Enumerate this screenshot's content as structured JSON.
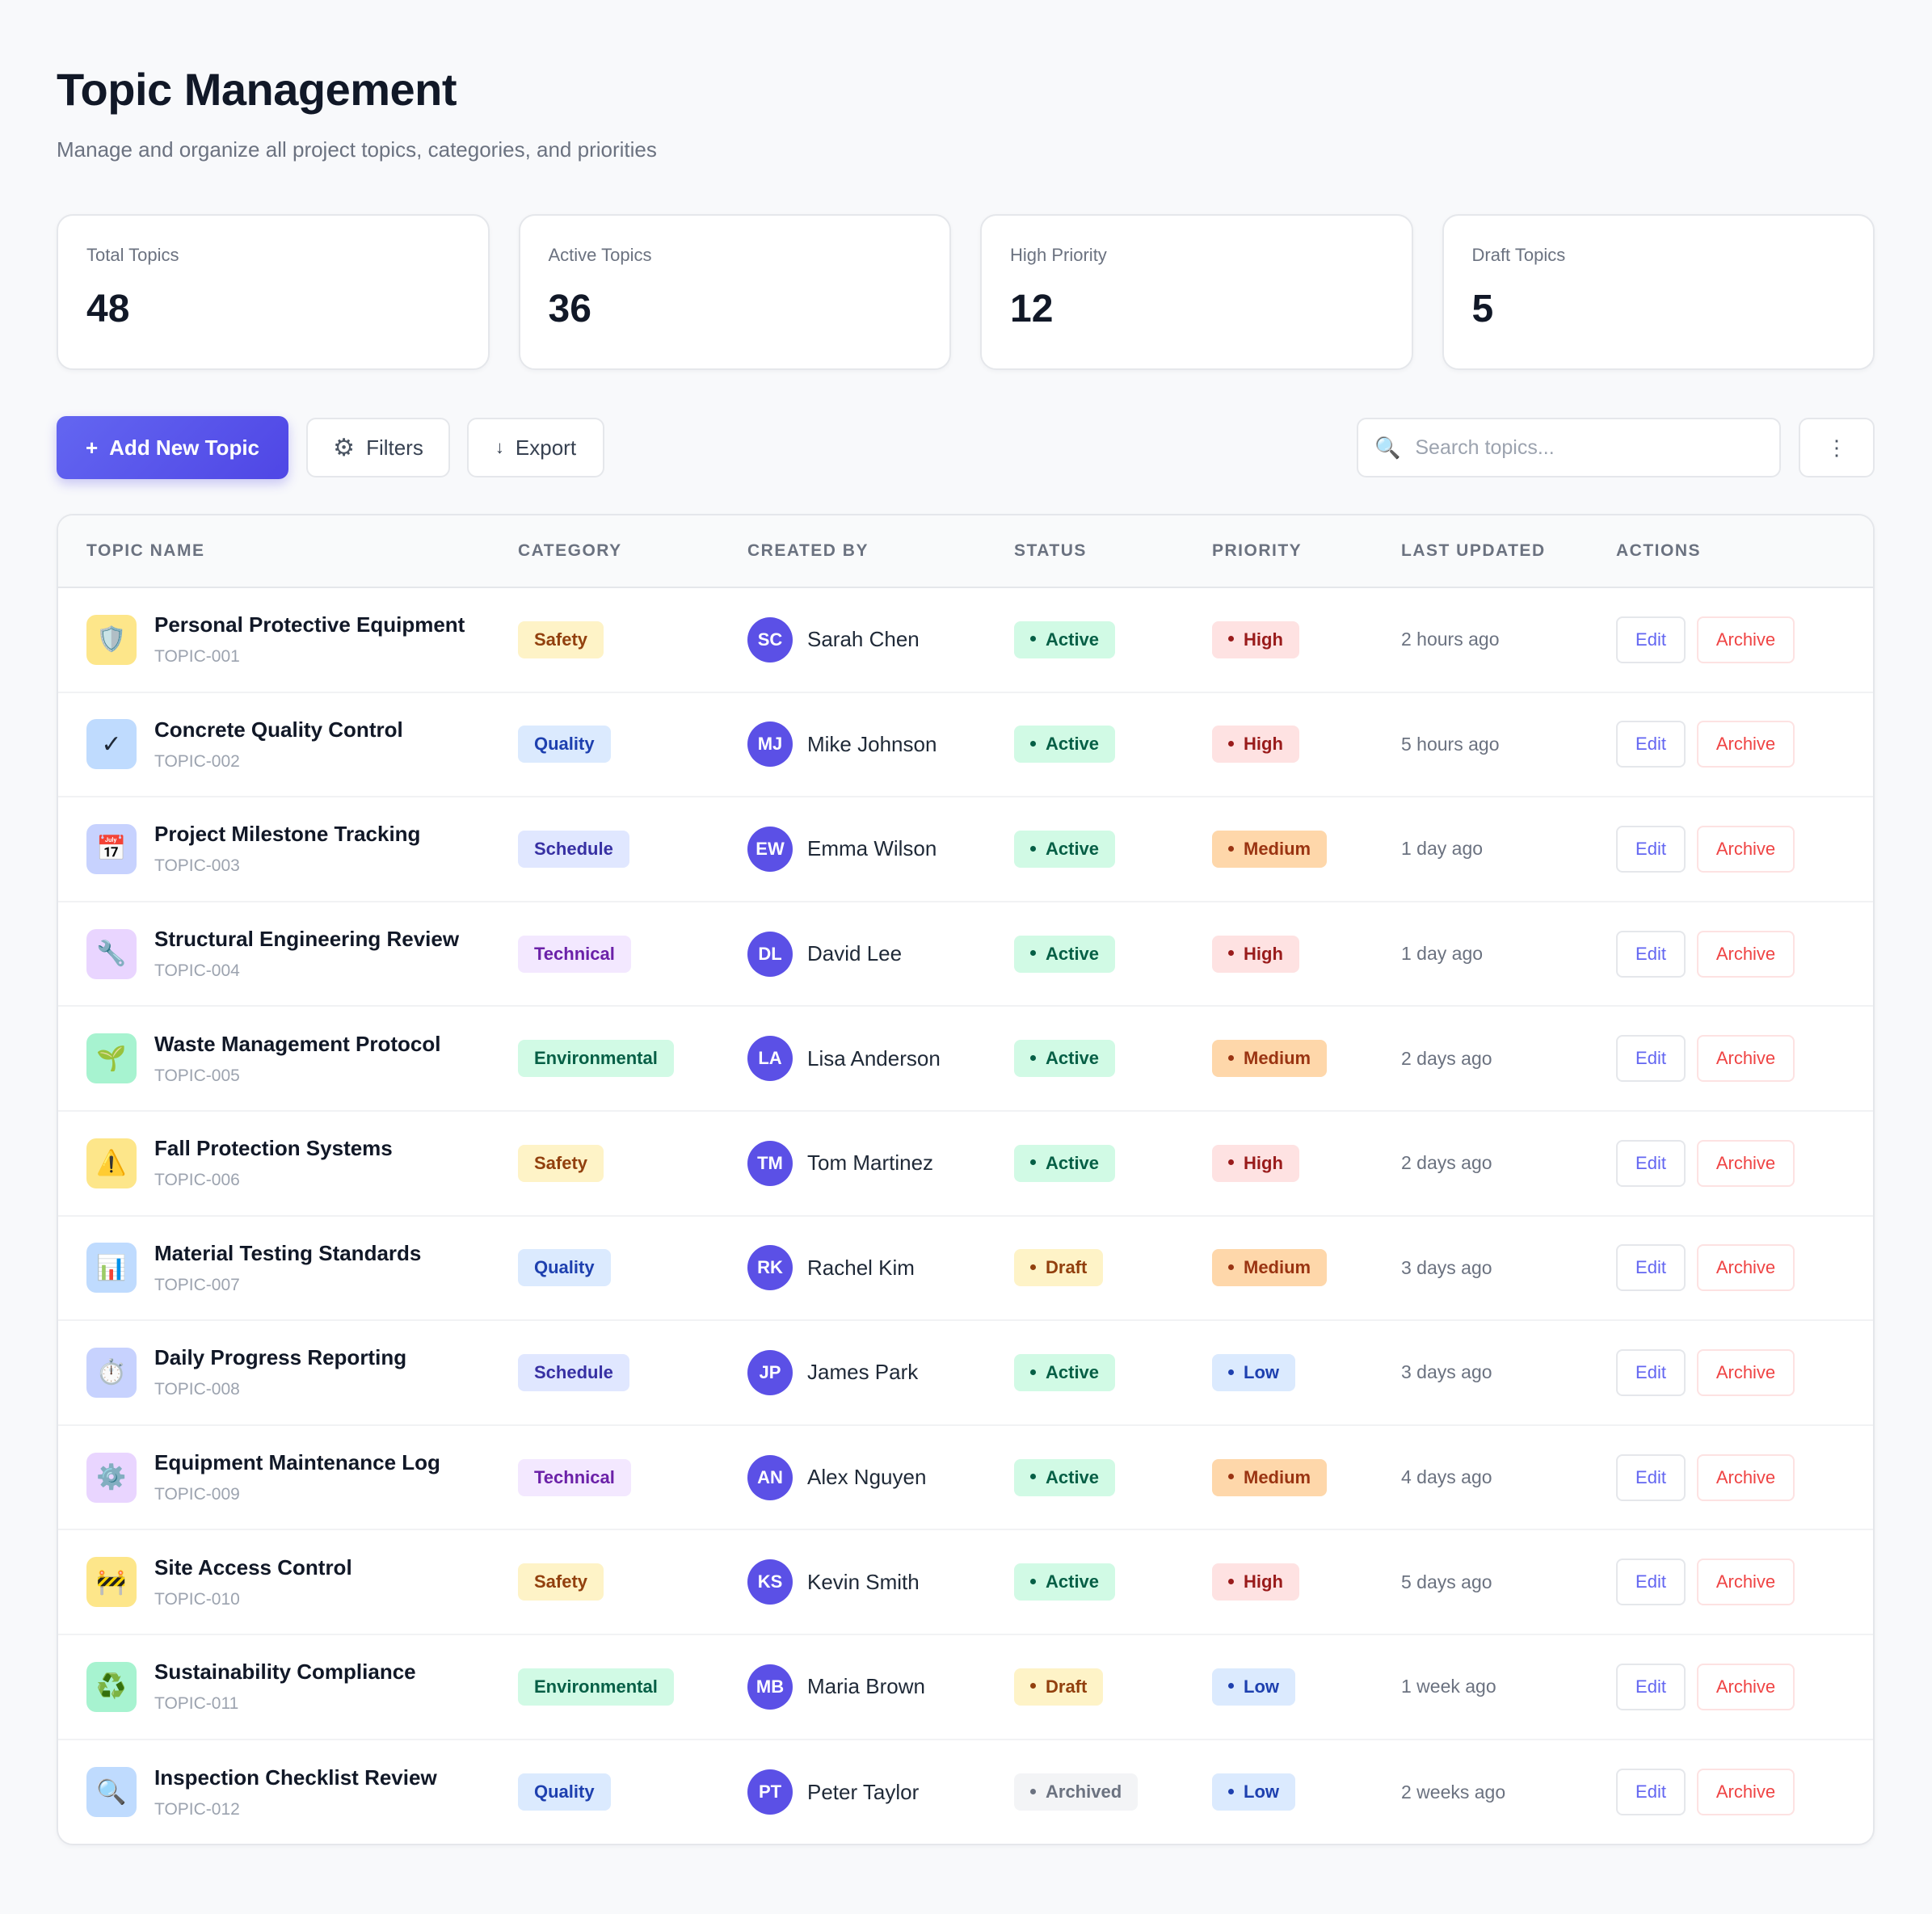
{
  "header": {
    "title": "Topic Management",
    "subtitle": "Manage and organize all project topics, categories, and priorities"
  },
  "stats": [
    {
      "label": "Total Topics",
      "value": "48"
    },
    {
      "label": "Active Topics",
      "value": "36"
    },
    {
      "label": "High Priority",
      "value": "12"
    },
    {
      "label": "Draft Topics",
      "value": "5"
    }
  ],
  "toolbar": {
    "add_label": "Add New Topic",
    "add_icon": "+",
    "filters_label": "Filters",
    "filters_icon": "⚙",
    "export_label": "Export",
    "export_icon": "↓",
    "search_placeholder": "Search topics...",
    "search_icon": "🔍",
    "more_icon": "⋮"
  },
  "table": {
    "columns": [
      "TOPIC NAME",
      "CATEGORY",
      "CREATED BY",
      "STATUS",
      "PRIORITY",
      "LAST UPDATED",
      "ACTIONS"
    ],
    "edit_label": "Edit",
    "archive_label": "Archive",
    "rows": [
      {
        "icon": "🛡️",
        "icon_name": "shield-icon",
        "name": "Personal Protective Equipment",
        "id": "TOPIC-001",
        "category": "Safety",
        "initials": "SC",
        "creator": "Sarah Chen",
        "status": "Active",
        "priority": "High",
        "updated": "2 hours ago"
      },
      {
        "icon": "✓",
        "icon_name": "check-icon",
        "name": "Concrete Quality Control",
        "id": "TOPIC-002",
        "category": "Quality",
        "initials": "MJ",
        "creator": "Mike Johnson",
        "status": "Active",
        "priority": "High",
        "updated": "5 hours ago"
      },
      {
        "icon": "📅",
        "icon_name": "calendar-icon",
        "name": "Project Milestone Tracking",
        "id": "TOPIC-003",
        "category": "Schedule",
        "initials": "EW",
        "creator": "Emma Wilson",
        "status": "Active",
        "priority": "Medium",
        "updated": "1 day ago"
      },
      {
        "icon": "🔧",
        "icon_name": "wrench-icon",
        "name": "Structural Engineering Review",
        "id": "TOPIC-004",
        "category": "Technical",
        "initials": "DL",
        "creator": "David Lee",
        "status": "Active",
        "priority": "High",
        "updated": "1 day ago"
      },
      {
        "icon": "🌱",
        "icon_name": "seedling-icon",
        "name": "Waste Management Protocol",
        "id": "TOPIC-005",
        "category": "Environmental",
        "initials": "LA",
        "creator": "Lisa Anderson",
        "status": "Active",
        "priority": "Medium",
        "updated": "2 days ago"
      },
      {
        "icon": "⚠️",
        "icon_name": "warning-icon",
        "name": "Fall Protection Systems",
        "id": "TOPIC-006",
        "category": "Safety",
        "initials": "TM",
        "creator": "Tom Martinez",
        "status": "Active",
        "priority": "High",
        "updated": "2 days ago"
      },
      {
        "icon": "📊",
        "icon_name": "bar-chart-icon",
        "name": "Material Testing Standards",
        "id": "TOPIC-007",
        "category": "Quality",
        "initials": "RK",
        "creator": "Rachel Kim",
        "status": "Draft",
        "priority": "Medium",
        "updated": "3 days ago"
      },
      {
        "icon": "⏱️",
        "icon_name": "stopwatch-icon",
        "name": "Daily Progress Reporting",
        "id": "TOPIC-008",
        "category": "Schedule",
        "initials": "JP",
        "creator": "James Park",
        "status": "Active",
        "priority": "Low",
        "updated": "3 days ago"
      },
      {
        "icon": "⚙️",
        "icon_name": "gear-icon",
        "name": "Equipment Maintenance Log",
        "id": "TOPIC-009",
        "category": "Technical",
        "initials": "AN",
        "creator": "Alex Nguyen",
        "status": "Active",
        "priority": "Medium",
        "updated": "4 days ago"
      },
      {
        "icon": "🚧",
        "icon_name": "barrier-icon",
        "name": "Site Access Control",
        "id": "TOPIC-010",
        "category": "Safety",
        "initials": "KS",
        "creator": "Kevin Smith",
        "status": "Active",
        "priority": "High",
        "updated": "5 days ago"
      },
      {
        "icon": "♻️",
        "icon_name": "recycle-icon",
        "name": "Sustainability Compliance",
        "id": "TOPIC-011",
        "category": "Environmental",
        "initials": "MB",
        "creator": "Maria Brown",
        "status": "Draft",
        "priority": "Low",
        "updated": "1 week ago"
      },
      {
        "icon": "🔍",
        "icon_name": "magnifier-icon",
        "name": "Inspection Checklist Review",
        "id": "TOPIC-012",
        "category": "Quality",
        "initials": "PT",
        "creator": "Peter Taylor",
        "status": "Archived",
        "priority": "Low",
        "updated": "2 weeks ago"
      }
    ]
  },
  "colors": {
    "primary": "#4f46e5",
    "avatar": "#5b50e6",
    "category": {
      "Safety": {
        "bg": "#fef3c7",
        "fg": "#92400e",
        "icon_bg": "#fde68a"
      },
      "Quality": {
        "bg": "#dbeafe",
        "fg": "#1e40af",
        "icon_bg": "#bfdbfe"
      },
      "Schedule": {
        "bg": "#e0e7ff",
        "fg": "#3730a3",
        "icon_bg": "#c7d2fe"
      },
      "Technical": {
        "bg": "#f3e8ff",
        "fg": "#6b21a8",
        "icon_bg": "#e9d5ff"
      },
      "Environmental": {
        "bg": "#d1fae5",
        "fg": "#065f46",
        "icon_bg": "#a7f3d0"
      }
    },
    "status": {
      "Active": {
        "bg": "#d1fae5",
        "fg": "#065f46"
      },
      "Draft": {
        "bg": "#fef3c7",
        "fg": "#92400e"
      },
      "Archived": {
        "bg": "#f3f4f6",
        "fg": "#6b7280"
      }
    },
    "priority": {
      "High": {
        "bg": "#fee2e2",
        "fg": "#991b1b"
      },
      "Medium": {
        "bg": "#fed7aa",
        "fg": "#9a3412"
      },
      "Low": {
        "bg": "#dbeafe",
        "fg": "#1e40af"
      }
    }
  }
}
